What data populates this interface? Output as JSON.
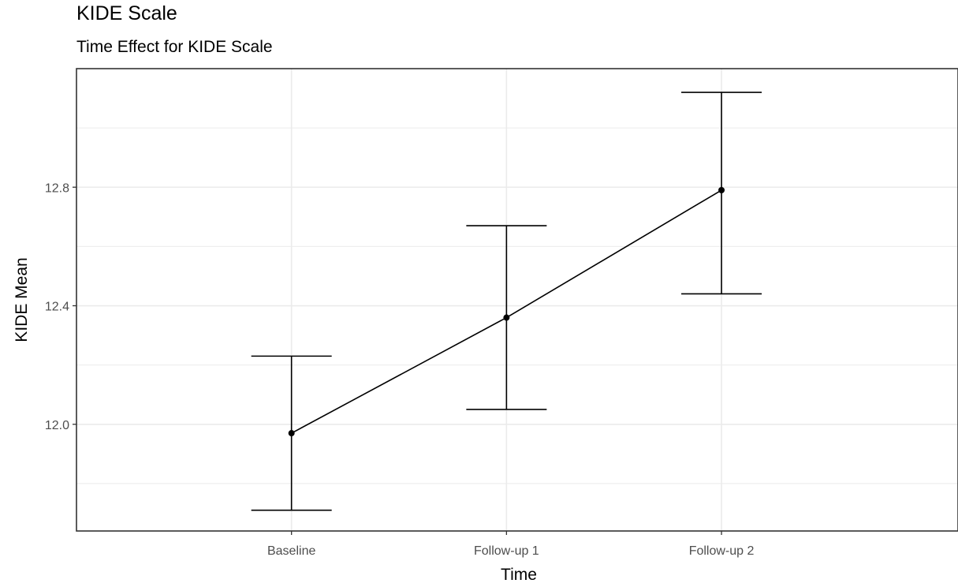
{
  "chart_data": {
    "type": "line",
    "title": "KIDE Scale",
    "subtitle": "Time Effect for KIDE Scale",
    "xlabel": "Time",
    "ylabel": "KIDE Mean",
    "categories": [
      "Baseline",
      "Follow-up 1",
      "Follow-up 2"
    ],
    "series": [
      {
        "values": [
          11.97,
          12.36,
          12.79
        ],
        "error_lower": [
          11.71,
          12.05,
          12.44
        ],
        "error_upper": [
          12.23,
          12.67,
          13.12
        ]
      }
    ],
    "ylim": [
      11.64,
      13.2
    ],
    "yticks": [
      12.0,
      12.4,
      12.8
    ],
    "ytick_labels": [
      "12.0",
      "12.4",
      "12.8"
    ],
    "grid": true,
    "legend": "none",
    "colors": {
      "line": "#000000",
      "grid": "#ebebeb",
      "panel_border": "#333333",
      "tick_text": "#4d4d4d"
    }
  }
}
